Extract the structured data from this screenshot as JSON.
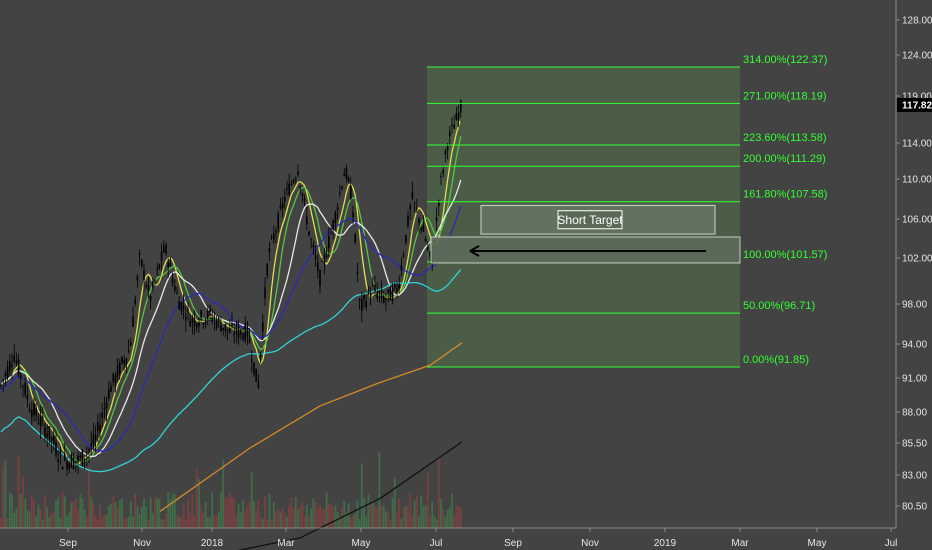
{
  "chart_data": {
    "type": "candlestick",
    "price_axis": {
      "ticks": [
        128.0,
        124.0,
        119.0,
        117.82,
        114.0,
        110.0,
        106.0,
        102.0,
        98.0,
        94.0,
        91.0,
        88.0,
        85.5,
        83.0,
        80.5
      ],
      "tick_labels": [
        "128.00",
        "124.00",
        "119.00",
        "114.00",
        "110.00",
        "106.00",
        "102.00",
        "98.00",
        "94.00",
        "91.00",
        "88.00",
        "85.50",
        "83.00",
        "80.50"
      ],
      "last_price": "117.82",
      "log_scale": true
    },
    "time_axis": {
      "tick_labels": [
        "Sep",
        "Nov",
        "2018",
        "Mar",
        "May",
        "Jul",
        "Sep",
        "Nov",
        "2019",
        "Mar",
        "May",
        "Jul"
      ]
    },
    "fibonacci_levels": [
      {
        "label": "314.00%(122.37)",
        "price": 122.37
      },
      {
        "label": "271.00%(118.19)",
        "price": 118.19
      },
      {
        "label": "223.60%(113.58)",
        "price": 113.58
      },
      {
        "label": "200.00%(111.29)",
        "price": 111.29
      },
      {
        "label": "161.80%(107.58)",
        "price": 107.58
      },
      {
        "label": "100.00%(101.57)",
        "price": 101.57
      },
      {
        "label": "50.00%(96.71)",
        "price": 96.71
      },
      {
        "label": "0.00%(91.85)",
        "price": 91.85
      }
    ],
    "annotations": [
      {
        "text": "Short Target",
        "price_low": 104.3,
        "price_high": 107.2
      }
    ],
    "colors": {
      "background": "#434343",
      "fib_line": "#33ff33",
      "fib_zone": "#4c6148",
      "candle": "#000000",
      "ma_yellow": "#e0e04a",
      "ma_green": "#55c542",
      "ma_white": "#e8e8e8",
      "ma_blue": "#2a2ab8",
      "ma_cyan": "#2fd4d4",
      "ma_orange": "#d88a2a",
      "ma_black": "#111111",
      "volume_up": "#3f7a4a",
      "volume_down": "#8a3f3f"
    }
  }
}
